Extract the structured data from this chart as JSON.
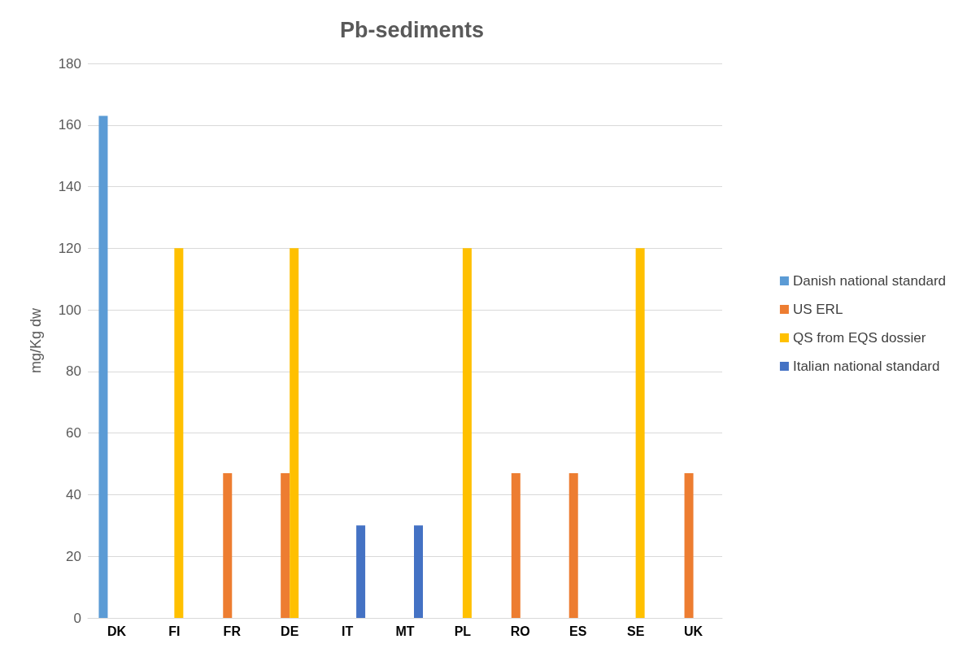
{
  "chart_data": {
    "type": "bar",
    "title": "Pb-sediments",
    "ylabel": "mg/Kg dw",
    "categories": [
      "DK",
      "FI",
      "FR",
      "DE",
      "IT",
      "MT",
      "PL",
      "RO",
      "ES",
      "SE",
      "UK"
    ],
    "series": [
      {
        "name": "Danish national standard",
        "color": "#5b9bd5",
        "values": [
          163,
          null,
          null,
          null,
          null,
          null,
          null,
          null,
          null,
          null,
          null
        ]
      },
      {
        "name": "US ERL",
        "color": "#ed7d31",
        "values": [
          null,
          null,
          47,
          47,
          null,
          null,
          null,
          47,
          47,
          null,
          47
        ]
      },
      {
        "name": "QS from EQS dossier",
        "color": "#ffc000",
        "values": [
          null,
          120,
          null,
          120,
          null,
          null,
          120,
          null,
          null,
          120,
          null
        ]
      },
      {
        "name": "Italian national standard",
        "color": "#4472c4",
        "values": [
          null,
          null,
          null,
          null,
          30,
          30,
          null,
          null,
          null,
          null,
          null
        ]
      }
    ],
    "ylim": [
      0,
      180
    ],
    "yticks": [
      0,
      20,
      40,
      60,
      80,
      100,
      120,
      140,
      160,
      180
    ],
    "grid": "y",
    "legend": "right"
  }
}
